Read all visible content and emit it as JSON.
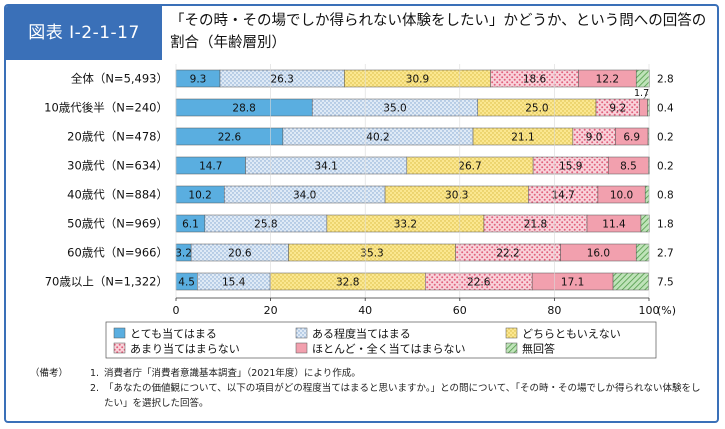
{
  "figure": {
    "label": "図表 I-2-1-17",
    "title": "「その時・その場でしか得られない体験をしたい」かどうか、という問への回答の割合（年齢層別）"
  },
  "chart_data": {
    "type": "bar",
    "orientation": "horizontal",
    "stacked": true,
    "percent_unit": "(%)",
    "xlim": [
      0,
      100
    ],
    "x_ticks": [
      "0",
      "20",
      "40",
      "60",
      "80",
      "100"
    ],
    "categories": [
      "全体（N=5,493）",
      "10歳代後半（N=240）",
      "20歳代（N=478）",
      "30歳代（N=634）",
      "40歳代（N=884）",
      "50歳代（N=969）",
      "60歳代（N=966）",
      "70歳以上（N=1,322）"
    ],
    "series": [
      {
        "name": "とても当てはまる",
        "color": "#5aaee0",
        "pattern": "solid",
        "values": [
          9.3,
          28.8,
          22.6,
          14.7,
          10.2,
          6.1,
          3.2,
          4.5
        ]
      },
      {
        "name": "ある程度当てはまる",
        "color": "#dfeaf6",
        "pattern": "dots",
        "values": [
          26.3,
          35.0,
          40.2,
          34.1,
          34.0,
          25.8,
          20.6,
          15.4
        ]
      },
      {
        "name": "どちらともいえない",
        "color": "#fbe790",
        "pattern": "dots",
        "values": [
          30.9,
          25.0,
          21.1,
          26.7,
          30.3,
          33.2,
          35.3,
          32.8
        ]
      },
      {
        "name": "あまり当てはまらない",
        "color": "#f7c8d2",
        "pattern": "dots",
        "values": [
          18.6,
          9.2,
          9.0,
          15.9,
          14.7,
          21.8,
          22.2,
          22.6
        ]
      },
      {
        "name": "ほとんど・全く当てはまらない",
        "color": "#f2a0ae",
        "pattern": "solid",
        "values": [
          12.2,
          1.7,
          6.9,
          8.5,
          10.0,
          11.4,
          16.0,
          17.1
        ]
      },
      {
        "name": "無回答",
        "color": "#9fd29a",
        "pattern": "hatch",
        "values": [
          2.8,
          0.4,
          0.2,
          0.2,
          0.8,
          1.8,
          2.7,
          7.5
        ]
      }
    ],
    "value_labels": [
      [
        "9.3",
        "26.3",
        "30.9",
        "18.6",
        "12.2",
        "2.8"
      ],
      [
        "28.8",
        "35.0",
        "25.0",
        "9.2",
        "1.7",
        "0.4"
      ],
      [
        "22.6",
        "40.2",
        "21.1",
        "9.0",
        "6.9",
        "0.2"
      ],
      [
        "14.7",
        "34.1",
        "26.7",
        "15.9",
        "8.5",
        "0.2"
      ],
      [
        "10.2",
        "34.0",
        "30.3",
        "14.7",
        "10.0",
        "0.8"
      ],
      [
        "6.1",
        "25.8",
        "33.2",
        "21.8",
        "11.4",
        "1.8"
      ],
      [
        "3.2",
        "20.6",
        "35.3",
        "22.2",
        "16.0",
        "2.7"
      ],
      [
        "4.5",
        "15.4",
        "32.8",
        "22.6",
        "17.1",
        "7.5"
      ]
    ],
    "legend_position": "bottom"
  },
  "notes": {
    "lead": "（備考）",
    "items": [
      {
        "num": "1.",
        "text": "消費者庁「消費者意識基本調査」（2021年度）により作成。"
      },
      {
        "num": "2.",
        "text": "「あなたの価値観について、以下の項目がどの程度当てはまると思いますか。」との問について、「その時・その場でしか得られない体験をしたい」を選択した回答。"
      }
    ]
  }
}
